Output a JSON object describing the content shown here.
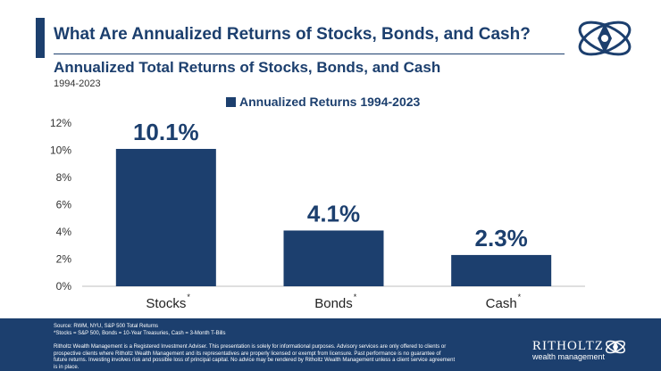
{
  "header": {
    "title": "What Are Annualized Returns of Stocks, Bonds, and Cash?",
    "subtitle": "Annualized Total Returns of Stocks, Bonds, and Cash",
    "date_range": "1994-2023",
    "logo_icon": "ritholtz-orbit-logo-icon"
  },
  "colors": {
    "primary": "#1c3f6e",
    "background": "#ffffff"
  },
  "chart_data": {
    "type": "bar",
    "title": "Annualized Total Returns of Stocks, Bonds, and Cash",
    "legend": "Annualized Returns 1994-2023",
    "categories": [
      "Stocks",
      "Bonds",
      "Cash"
    ],
    "footnote_marker": "*",
    "values": [
      10.1,
      4.1,
      2.3
    ],
    "data_labels": [
      "10.1%",
      "4.1%",
      "2.3%"
    ],
    "ylim": [
      0,
      12
    ],
    "yticks": [
      0,
      2,
      4,
      6,
      8,
      10,
      12
    ],
    "ytick_labels": [
      "0%",
      "2%",
      "4%",
      "6%",
      "8%",
      "10%",
      "12%"
    ],
    "xlabel": "",
    "ylabel": "",
    "grid": false,
    "legend_position": "top-center"
  },
  "footer": {
    "source": "Source: RWM, NYU, S&P 500 Total Returns",
    "definitions": "*Stocks = S&P 500, Bonds = 10-Year Treasuries, Cash = 3-Month T-Bills",
    "disclaimer": "Ritholtz Wealth Management is a Registered Investment Adviser. This presentation is solely for informational purposes. Advisory services are only offered to clients or prospective clients where Ritholtz Wealth Management and its representatives are properly licensed or exempt from licensure. Past performance is no guarantee of future returns. Investing involves risk and possible loss of principal capital. No advice may be rendered by Ritholtz Wealth Management unless a client service agreement is in place.",
    "brand_name": "RITHOLTZ",
    "brand_sub": "wealth management"
  }
}
